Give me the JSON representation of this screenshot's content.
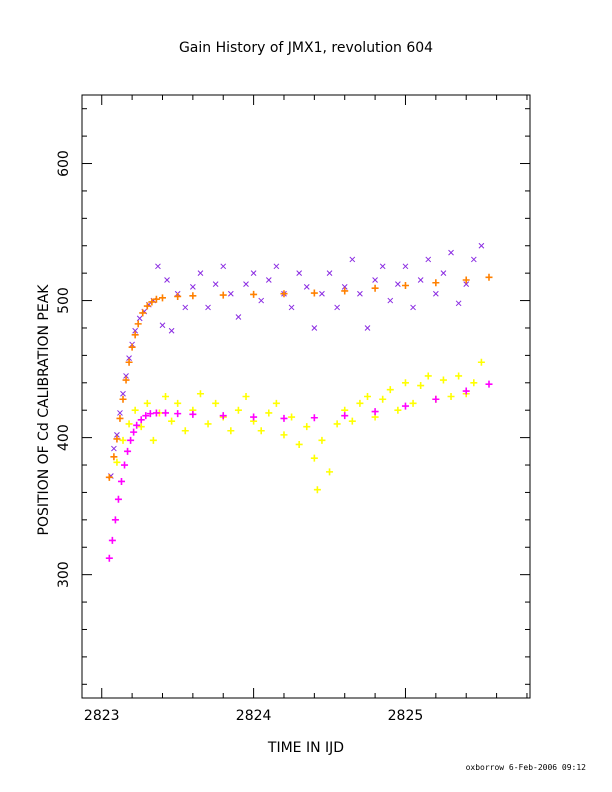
{
  "chart_data": {
    "type": "scatter",
    "title": "Gain History of JMX1, revolution 604",
    "xlabel": "TIME IN IJD",
    "ylabel": "POSITION OF Cd CALIBRATION PEAK",
    "xlim": [
      2822.87,
      2825.82
    ],
    "ylim": [
      210,
      650
    ],
    "x_ticks": [
      2823,
      2824,
      2825
    ],
    "x_tick_labels": [
      "2823",
      "2824",
      "2825"
    ],
    "y_ticks": [
      300,
      400,
      500,
      600
    ],
    "y_tick_labels": [
      "300",
      "400",
      "500",
      "600"
    ],
    "grid": false,
    "legend": "none",
    "series": [
      {
        "marker": "x",
        "color": "#8a2be2",
        "points": [
          [
            2823.06,
            372
          ],
          [
            2823.08,
            392
          ],
          [
            2823.1,
            402
          ],
          [
            2823.12,
            418
          ],
          [
            2823.14,
            432
          ],
          [
            2823.16,
            445
          ],
          [
            2823.18,
            458
          ],
          [
            2823.2,
            468
          ],
          [
            2823.22,
            478
          ],
          [
            2823.25,
            487
          ],
          [
            2823.28,
            492
          ],
          [
            2823.31,
            497
          ],
          [
            2823.34,
            500
          ],
          [
            2823.37,
            525
          ],
          [
            2823.4,
            482
          ],
          [
            2823.43,
            515
          ],
          [
            2823.46,
            478
          ],
          [
            2823.5,
            505
          ],
          [
            2823.55,
            495
          ],
          [
            2823.6,
            510
          ],
          [
            2823.65,
            520
          ],
          [
            2823.7,
            495
          ],
          [
            2823.75,
            512
          ],
          [
            2823.8,
            525
          ],
          [
            2823.85,
            505
          ],
          [
            2823.9,
            488
          ],
          [
            2823.95,
            512
          ],
          [
            2824.0,
            520
          ],
          [
            2824.05,
            500
          ],
          [
            2824.1,
            515
          ],
          [
            2824.15,
            525
          ],
          [
            2824.2,
            505
          ],
          [
            2824.25,
            495
          ],
          [
            2824.3,
            520
          ],
          [
            2824.35,
            510
          ],
          [
            2824.4,
            480
          ],
          [
            2824.45,
            505
          ],
          [
            2824.5,
            520
          ],
          [
            2824.55,
            495
          ],
          [
            2824.6,
            510
          ],
          [
            2824.65,
            530
          ],
          [
            2824.7,
            505
          ],
          [
            2824.75,
            480
          ],
          [
            2824.8,
            515
          ],
          [
            2824.85,
            525
          ],
          [
            2824.9,
            500
          ],
          [
            2824.95,
            512
          ],
          [
            2825.0,
            525
          ],
          [
            2825.05,
            495
          ],
          [
            2825.1,
            515
          ],
          [
            2825.15,
            530
          ],
          [
            2825.2,
            505
          ],
          [
            2825.25,
            520
          ],
          [
            2825.3,
            535
          ],
          [
            2825.35,
            498
          ],
          [
            2825.4,
            512
          ],
          [
            2825.45,
            530
          ],
          [
            2825.5,
            540
          ]
        ]
      },
      {
        "marker": "+",
        "color": "#ffff00",
        "points": [
          [
            2823.1,
            382
          ],
          [
            2823.14,
            398
          ],
          [
            2823.18,
            410
          ],
          [
            2823.22,
            420
          ],
          [
            2823.26,
            408
          ],
          [
            2823.3,
            425
          ],
          [
            2823.34,
            398
          ],
          [
            2823.38,
            418
          ],
          [
            2823.42,
            430
          ],
          [
            2823.46,
            412
          ],
          [
            2823.5,
            425
          ],
          [
            2823.55,
            405
          ],
          [
            2823.6,
            420
          ],
          [
            2823.65,
            432
          ],
          [
            2823.7,
            410
          ],
          [
            2823.75,
            425
          ],
          [
            2823.8,
            415
          ],
          [
            2823.85,
            405
          ],
          [
            2823.9,
            420
          ],
          [
            2823.95,
            430
          ],
          [
            2824.0,
            412
          ],
          [
            2824.05,
            405
          ],
          [
            2824.1,
            418
          ],
          [
            2824.15,
            425
          ],
          [
            2824.2,
            402
          ],
          [
            2824.25,
            415
          ],
          [
            2824.3,
            395
          ],
          [
            2824.35,
            408
          ],
          [
            2824.4,
            385
          ],
          [
            2824.42,
            362
          ],
          [
            2824.45,
            398
          ],
          [
            2824.5,
            375
          ],
          [
            2824.55,
            410
          ],
          [
            2824.6,
            420
          ],
          [
            2824.65,
            412
          ],
          [
            2824.7,
            425
          ],
          [
            2824.75,
            430
          ],
          [
            2824.8,
            415
          ],
          [
            2824.85,
            428
          ],
          [
            2824.9,
            435
          ],
          [
            2824.95,
            420
          ],
          [
            2825.0,
            440
          ],
          [
            2825.05,
            425
          ],
          [
            2825.1,
            438
          ],
          [
            2825.15,
            445
          ],
          [
            2825.2,
            428
          ],
          [
            2825.25,
            442
          ],
          [
            2825.3,
            430
          ],
          [
            2825.35,
            445
          ],
          [
            2825.4,
            432
          ],
          [
            2825.45,
            440
          ],
          [
            2825.5,
            455
          ]
        ]
      },
      {
        "marker": "+",
        "color": "#ff8000",
        "points": [
          [
            2823.05,
            371
          ],
          [
            2823.08,
            386
          ],
          [
            2823.1,
            399
          ],
          [
            2823.12,
            414
          ],
          [
            2823.14,
            428
          ],
          [
            2823.16,
            442
          ],
          [
            2823.18,
            455
          ],
          [
            2823.2,
            466
          ],
          [
            2823.22,
            475
          ],
          [
            2823.24,
            483
          ],
          [
            2823.27,
            491
          ],
          [
            2823.3,
            496
          ],
          [
            2823.33,
            499
          ],
          [
            2823.36,
            501
          ],
          [
            2823.4,
            502
          ],
          [
            2823.5,
            503
          ],
          [
            2823.6,
            503.5
          ],
          [
            2823.8,
            504
          ],
          [
            2824.0,
            504.5
          ],
          [
            2824.2,
            505
          ],
          [
            2824.4,
            505.5
          ],
          [
            2824.6,
            507
          ],
          [
            2824.8,
            509
          ],
          [
            2825.0,
            511
          ],
          [
            2825.2,
            513
          ],
          [
            2825.4,
            515
          ],
          [
            2825.55,
            517
          ]
        ]
      },
      {
        "marker": "+",
        "color": "#ff00ff",
        "points": [
          [
            2823.05,
            312
          ],
          [
            2823.07,
            325
          ],
          [
            2823.09,
            340
          ],
          [
            2823.11,
            355
          ],
          [
            2823.13,
            368
          ],
          [
            2823.15,
            380
          ],
          [
            2823.17,
            390
          ],
          [
            2823.19,
            398
          ],
          [
            2823.21,
            404
          ],
          [
            2823.23,
            409
          ],
          [
            2823.26,
            413
          ],
          [
            2823.29,
            416
          ],
          [
            2823.32,
            417.5
          ],
          [
            2823.36,
            418
          ],
          [
            2823.42,
            418
          ],
          [
            2823.5,
            417.5
          ],
          [
            2823.6,
            417
          ],
          [
            2823.8,
            416
          ],
          [
            2824.0,
            415
          ],
          [
            2824.2,
            414
          ],
          [
            2824.4,
            414.5
          ],
          [
            2824.6,
            416
          ],
          [
            2824.8,
            419
          ],
          [
            2825.0,
            423
          ],
          [
            2825.2,
            428
          ],
          [
            2825.4,
            434
          ],
          [
            2825.55,
            439
          ]
        ]
      }
    ]
  },
  "footer": "oxborrow  6-Feb-2006 09:12"
}
